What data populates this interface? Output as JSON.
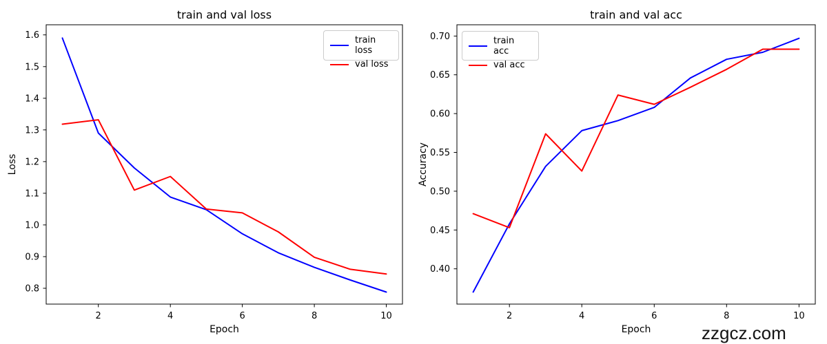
{
  "watermark": "zzgcz.com",
  "chart_data": [
    {
      "type": "line",
      "title": "train and val loss",
      "xlabel": "Epoch",
      "ylabel": "Loss",
      "x": [
        1,
        2,
        3,
        4,
        5,
        6,
        7,
        8,
        9,
        10
      ],
      "series": [
        {
          "name": "train loss",
          "color": "#0000ff",
          "values": [
            1.59,
            1.29,
            1.18,
            1.088,
            1.048,
            0.972,
            0.912,
            0.866,
            0.826,
            0.788
          ]
        },
        {
          "name": "val loss",
          "color": "#ff0000",
          "values": [
            1.318,
            1.332,
            1.11,
            1.153,
            1.05,
            1.038,
            0.978,
            0.898,
            0.86,
            0.845
          ]
        }
      ],
      "xlim": [
        0.55,
        10.45
      ],
      "ylim": [
        0.75,
        1.632
      ],
      "xticks": [
        2,
        4,
        6,
        8,
        10
      ],
      "xtick_labels": [
        "2",
        "4",
        "6",
        "8",
        "10"
      ],
      "yticks": [
        0.8,
        0.9,
        1.0,
        1.1,
        1.2,
        1.3,
        1.4,
        1.5,
        1.6
      ],
      "ytick_labels": [
        "0.8",
        "0.9",
        "1.0",
        "1.1",
        "1.2",
        "1.3",
        "1.4",
        "1.5",
        "1.6"
      ],
      "grid": false,
      "legend_position": "top-right"
    },
    {
      "type": "line",
      "title": "train and val acc",
      "xlabel": "Epoch",
      "ylabel": "Accuracy",
      "x": [
        1,
        2,
        3,
        4,
        5,
        6,
        7,
        8,
        9,
        10
      ],
      "series": [
        {
          "name": "train acc",
          "color": "#0000ff",
          "values": [
            0.37,
            0.458,
            0.532,
            0.578,
            0.591,
            0.608,
            0.646,
            0.67,
            0.679,
            0.697
          ]
        },
        {
          "name": "val acc",
          "color": "#ff0000",
          "values": [
            0.471,
            0.453,
            0.574,
            0.526,
            0.624,
            0.612,
            0.634,
            0.657,
            0.683,
            0.683
          ]
        }
      ],
      "xlim": [
        0.55,
        10.45
      ],
      "ylim": [
        0.3545,
        0.7145
      ],
      "xticks": [
        2,
        4,
        6,
        8,
        10
      ],
      "xtick_labels": [
        "2",
        "4",
        "6",
        "8",
        "10"
      ],
      "yticks": [
        0.4,
        0.45,
        0.5,
        0.55,
        0.6,
        0.65,
        0.7
      ],
      "ytick_labels": [
        "0.40",
        "0.45",
        "0.50",
        "0.55",
        "0.60",
        "0.65",
        "0.70"
      ],
      "grid": false,
      "legend_position": "top-left"
    }
  ]
}
